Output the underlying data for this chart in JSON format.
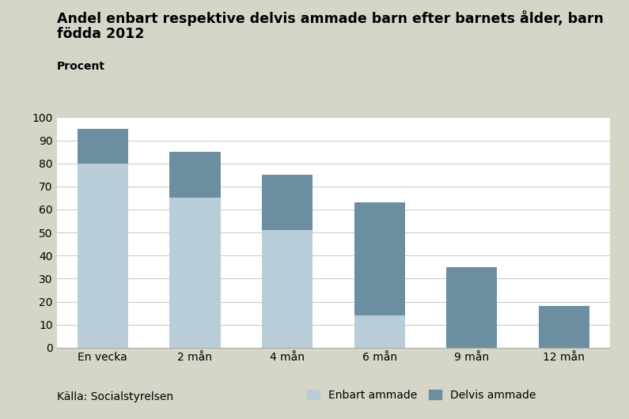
{
  "categories": [
    "En vecka",
    "2 mån",
    "4 mån",
    "6 mån",
    "9 mån",
    "12 mån"
  ],
  "enbart_ammade": [
    80,
    65,
    51,
    14,
    0,
    0
  ],
  "delvis_ammade": [
    15,
    20,
    24,
    49,
    35,
    18
  ],
  "color_enbart": "#b8cdd8",
  "color_delvis": "#6b8fa0",
  "title_line1": "Andel enbart respektive delvis ammade barn efter barnets ålder, barn",
  "title_line2": "födda 2012",
  "procent_label": "Procent",
  "source": "Källa: Socialstyrelsen",
  "legend_enbart": "Enbart ammade",
  "legend_delvis": "Delvis ammade",
  "ylim": [
    0,
    100
  ],
  "yticks": [
    0,
    10,
    20,
    30,
    40,
    50,
    60,
    70,
    80,
    90,
    100
  ],
  "background_color": "#d6d6c8",
  "plot_background": "#ffffff",
  "title_fontsize": 12.5,
  "axis_fontsize": 10,
  "procent_fontsize": 10,
  "source_fontsize": 10,
  "bar_width": 0.55
}
